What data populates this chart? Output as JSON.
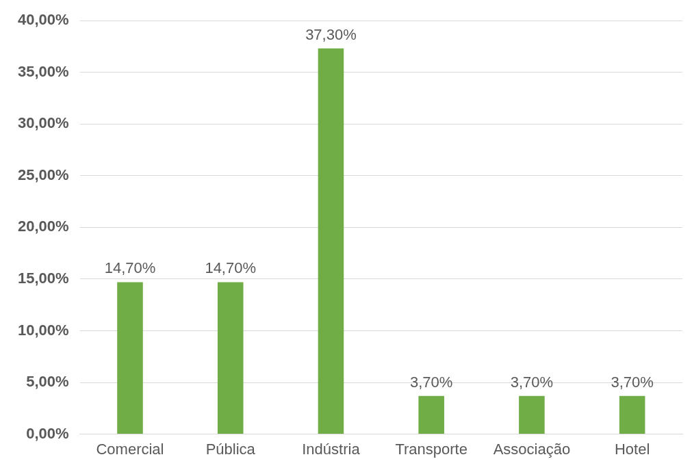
{
  "chart_data": {
    "type": "bar",
    "categories": [
      "Comercial",
      "Pública",
      "Indústria",
      "Transporte",
      "Associação",
      "Hotel"
    ],
    "series": [
      {
        "color": "#70ad47",
        "values": [
          14.7,
          14.7,
          37.3,
          3.7,
          3.7,
          3.7
        ]
      }
    ],
    "value_labels": [
      "14,70%",
      "14,70%",
      "37,30%",
      "3,70%",
      "3,70%",
      "3,70%"
    ],
    "ylim": [
      0,
      40
    ],
    "yticks": [
      {
        "value": 0,
        "label": "0,00%"
      },
      {
        "value": 5,
        "label": "5,00%"
      },
      {
        "value": 10,
        "label": "10,00%"
      },
      {
        "value": 15,
        "label": "15,00%"
      },
      {
        "value": 20,
        "label": "20,00%"
      },
      {
        "value": 25,
        "label": "25,00%"
      },
      {
        "value": 30,
        "label": "30,00%"
      },
      {
        "value": 35,
        "label": "35,00%"
      },
      {
        "value": 40,
        "label": "40,00%"
      }
    ],
    "grid": "y",
    "legend": false
  }
}
